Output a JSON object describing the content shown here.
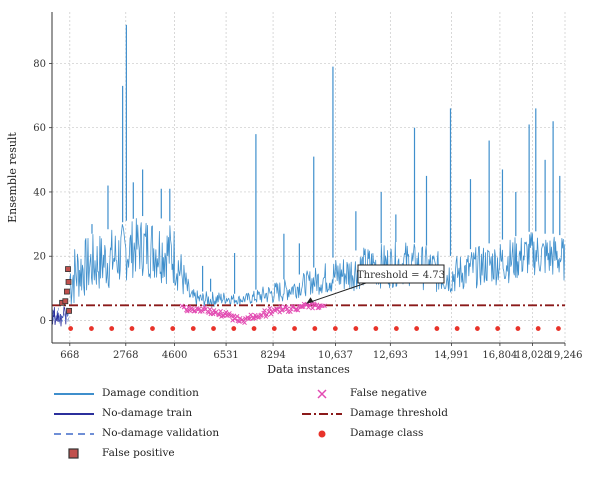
{
  "chart_data": {
    "type": "line",
    "xlabel": "Data instances",
    "ylabel": "Ensemble result",
    "x_ticks": [
      668,
      2768,
      4600,
      6531,
      8294,
      10637,
      12693,
      14991,
      16804,
      18028,
      19246
    ],
    "x_tick_labels": [
      "668",
      "2768",
      "4600",
      "6531",
      "8294",
      "10,637",
      "12,693",
      "14,991",
      "16,804",
      "18,028",
      "19,246"
    ],
    "y_ticks": [
      0,
      20,
      40,
      60,
      80
    ],
    "y_tick_labels": [
      "0",
      "20",
      "40",
      "60",
      "80"
    ],
    "xlim": [
      0,
      19246
    ],
    "ylim": [
      -7,
      96
    ],
    "grid": true,
    "threshold": 4.73,
    "annotation": {
      "text": "Threshold = 4.73",
      "x": 9400,
      "y": 4.73
    },
    "series": [
      {
        "name": "Damage condition",
        "kind": "band",
        "color": "#3f8fcc",
        "x": [
          668,
          1000,
          1500,
          2000,
          2500,
          2768,
          3200,
          3600,
          4000,
          4400,
          4600,
          5200,
          5600,
          6000,
          6531,
          7000,
          7500,
          8000,
          8294,
          8800,
          9200,
          9700,
          10200,
          10637,
          11200,
          11700,
          12200,
          12693,
          13200,
          13700,
          14200,
          14600,
          14991,
          15400,
          15900,
          16400,
          16804,
          17300,
          17700,
          18028,
          18500,
          18900,
          19246
        ],
        "low": [
          2,
          6,
          8,
          9,
          10,
          12,
          14,
          13,
          12,
          11,
          10,
          4,
          4,
          4,
          5,
          5,
          5,
          5,
          5,
          6,
          7,
          8,
          8,
          8,
          9,
          10,
          10,
          10,
          11,
          10,
          9,
          8,
          8,
          9,
          10,
          11,
          11,
          12,
          13,
          14,
          13,
          13,
          12
        ],
        "high": [
          24,
          25,
          27,
          28,
          30,
          31,
          32,
          33,
          32,
          31,
          30,
          10,
          9,
          9,
          9,
          8,
          9,
          11,
          12,
          13,
          14,
          16,
          18,
          20,
          21,
          23,
          24,
          24,
          25,
          24,
          23,
          21,
          20,
          21,
          23,
          24,
          25,
          26,
          27,
          28,
          27,
          27,
          26
        ],
        "spikes": [
          {
            "x": 1500,
            "y": 30
          },
          {
            "x": 2100,
            "y": 42
          },
          {
            "x": 2650,
            "y": 73
          },
          {
            "x": 2790,
            "y": 92
          },
          {
            "x": 3050,
            "y": 43
          },
          {
            "x": 3400,
            "y": 47
          },
          {
            "x": 4100,
            "y": 41
          },
          {
            "x": 4420,
            "y": 41
          },
          {
            "x": 5650,
            "y": 17
          },
          {
            "x": 5950,
            "y": 13
          },
          {
            "x": 6850,
            "y": 21
          },
          {
            "x": 7650,
            "y": 58
          },
          {
            "x": 8700,
            "y": 27
          },
          {
            "x": 9280,
            "y": 24
          },
          {
            "x": 9820,
            "y": 51
          },
          {
            "x": 10540,
            "y": 79
          },
          {
            "x": 11400,
            "y": 34
          },
          {
            "x": 12350,
            "y": 40
          },
          {
            "x": 12900,
            "y": 33
          },
          {
            "x": 13600,
            "y": 60
          },
          {
            "x": 14050,
            "y": 45
          },
          {
            "x": 14950,
            "y": 66
          },
          {
            "x": 15700,
            "y": 44
          },
          {
            "x": 16400,
            "y": 56
          },
          {
            "x": 16900,
            "y": 47
          },
          {
            "x": 17400,
            "y": 40
          },
          {
            "x": 17900,
            "y": 61
          },
          {
            "x": 18150,
            "y": 66
          },
          {
            "x": 18500,
            "y": 50
          },
          {
            "x": 18800,
            "y": 62
          },
          {
            "x": 19050,
            "y": 45
          }
        ]
      },
      {
        "name": "No-damage train",
        "color": "#2b2f9c",
        "x": [
          0,
          600
        ],
        "y": [
          -2,
          11
        ]
      },
      {
        "name": "No-damage validation",
        "color": "#6f8fd6",
        "x": [
          0,
          650
        ],
        "y": [
          -1,
          4
        ]
      },
      {
        "name": "False positive",
        "color": "#c0504d",
        "x": [
          380,
          500,
          560,
          600,
          620,
          640
        ],
        "y": [
          5.5,
          6,
          9,
          16,
          12,
          3
        ]
      },
      {
        "name": "False negative",
        "color": "#e24bb2",
        "x": [
          5000,
          5200,
          5400,
          5600,
          5800,
          6000,
          6200,
          6400,
          6531,
          6700,
          6900,
          7100,
          7300,
          7500,
          7700,
          7900,
          8100,
          8294,
          8500,
          8700,
          8900,
          9100,
          9300,
          9500,
          9700,
          9900,
          10100
        ],
        "y": [
          4,
          3.5,
          3,
          3.5,
          3,
          2.5,
          2.5,
          2,
          1.5,
          1,
          0.5,
          0,
          0.5,
          1,
          1.5,
          2,
          2.5,
          3,
          3,
          3.5,
          3.5,
          4,
          4,
          4.5,
          4.5,
          4.5,
          4.5
        ]
      },
      {
        "name": "Damage threshold",
        "color": "#8b1a1a",
        "x": [
          0,
          19246
        ],
        "y": [
          4.73,
          4.73
        ]
      },
      {
        "name": "Damage class",
        "color": "#e8332a",
        "x": [
          700,
          1480,
          2240,
          3000,
          3770,
          4530,
          5300,
          6060,
          6820,
          7580,
          8340,
          9100,
          9860,
          10630,
          11400,
          12150,
          12920,
          13680,
          14440,
          15200,
          15960,
          16720,
          17480,
          18240,
          19000
        ],
        "y": [
          -2.5,
          -2.5,
          -2.5,
          -2.5,
          -2.5,
          -2.5,
          -2.5,
          -2.5,
          -2.5,
          -2.5,
          -2.5,
          -2.5,
          -2.5,
          -2.5,
          -2.5,
          -2.5,
          -2.5,
          -2.5,
          -2.5,
          -2.5,
          -2.5,
          -2.5,
          -2.5,
          -2.5,
          -2.5
        ]
      }
    ],
    "legend_position": "bottom"
  }
}
